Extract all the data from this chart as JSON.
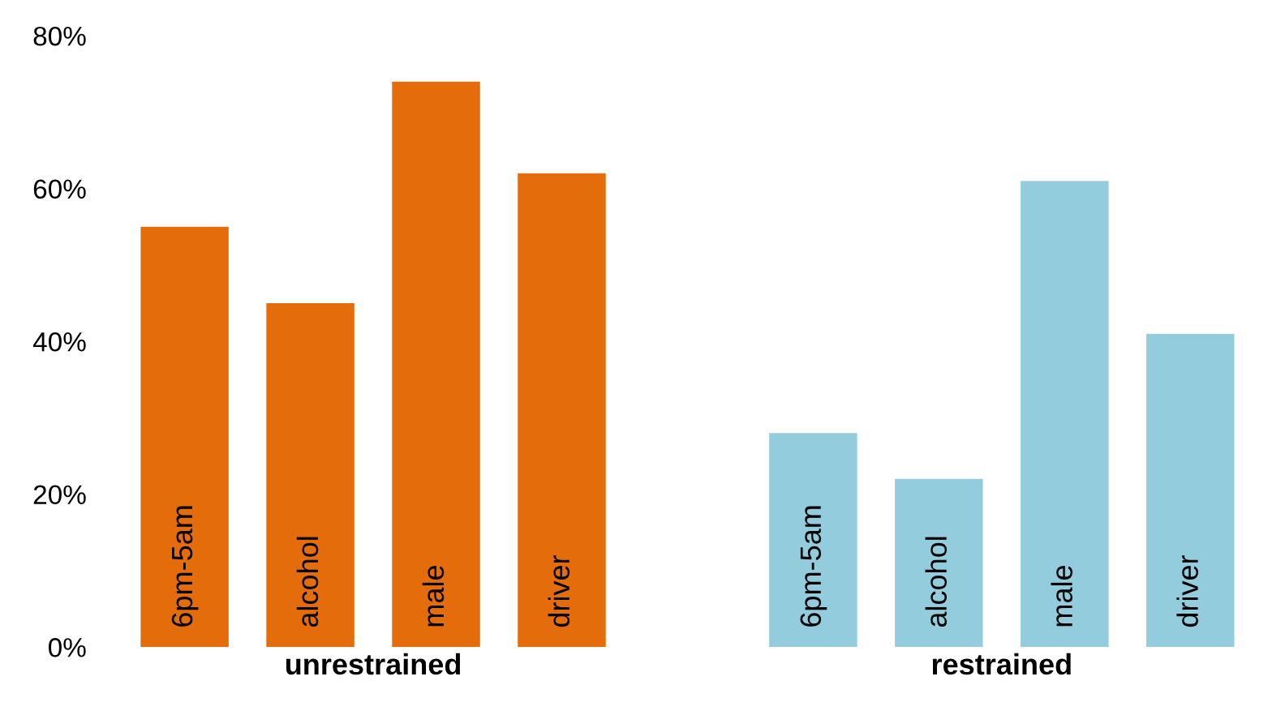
{
  "chart_data": {
    "type": "bar",
    "categories": [
      "6pm-5am",
      "alcohol",
      "male",
      "driver",
      null,
      "6pm-5am",
      "alcohol",
      "male",
      "driver"
    ],
    "series": [
      {
        "name": "unrestrained",
        "color": "#e46c0a",
        "values": [
          55,
          45,
          74,
          62,
          null,
          null,
          null,
          null,
          null
        ]
      },
      {
        "name": "restrained",
        "color": "#93cddd",
        "values": [
          null,
          null,
          null,
          null,
          null,
          28,
          22,
          61,
          41
        ]
      }
    ],
    "ylim": [
      0,
      80
    ],
    "yticks": [
      {
        "value": 0,
        "label": "0%"
      },
      {
        "value": 20,
        "label": "20%"
      },
      {
        "value": 40,
        "label": "40%"
      },
      {
        "value": 60,
        "label": "60%"
      },
      {
        "value": 80,
        "label": "80%"
      }
    ],
    "grid": false,
    "legend": false
  }
}
